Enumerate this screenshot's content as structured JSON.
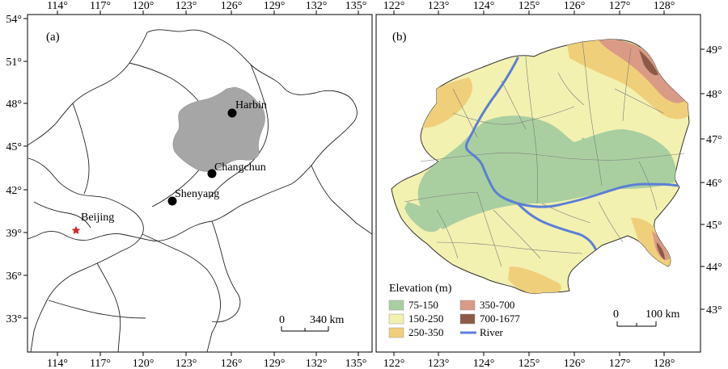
{
  "panel_a": {
    "label": "(a)",
    "top_ticks": [
      "114°",
      "117°",
      "120°",
      "123°",
      "126°",
      "129°",
      "132°",
      "135°"
    ],
    "bottom_ticks": [
      "114°",
      "117°",
      "120°",
      "123°",
      "126°",
      "129°",
      "132°",
      "135°"
    ],
    "left_ticks": [
      "54°",
      "51°",
      "48°",
      "45°",
      "42°",
      "39°",
      "36°",
      "33°"
    ],
    "cities": [
      {
        "name": "Harbin",
        "marker": "dot"
      },
      {
        "name": "Changchun",
        "marker": "dot"
      },
      {
        "name": "Shenyang",
        "marker": "dot"
      },
      {
        "name": "Beijing",
        "marker": "star"
      }
    ],
    "scalebar": {
      "left": "0",
      "right": "340 km"
    },
    "colors": {
      "study_area": "#a6a6a6",
      "star": "#d62728"
    }
  },
  "panel_b": {
    "label": "(b)",
    "top_ticks": [
      "122°",
      "123°",
      "124°",
      "125°",
      "126°",
      "127°",
      "128°"
    ],
    "bottom_ticks": [
      "122°",
      "123°",
      "124°",
      "125°",
      "126°",
      "127°",
      "128°"
    ],
    "right_ticks": [
      "49°",
      "48°",
      "47°",
      "46°",
      "45°",
      "44°",
      "43°"
    ],
    "legend": {
      "title": "Elevation (m)",
      "items": [
        {
          "label": "75-150",
          "color": "#a9cfa0",
          "kind": "box"
        },
        {
          "label": "150-250",
          "color": "#f3f1b0",
          "kind": "box"
        },
        {
          "label": "250-350",
          "color": "#f0cf7a",
          "kind": "box"
        },
        {
          "label": "350-700",
          "color": "#d99a86",
          "kind": "box"
        },
        {
          "label": "700-1677",
          "color": "#8c5a47",
          "kind": "box"
        },
        {
          "label": "River",
          "color": "#5b7fd6",
          "kind": "line"
        }
      ]
    },
    "scalebar": {
      "left": "0",
      "right": "100 km"
    }
  }
}
